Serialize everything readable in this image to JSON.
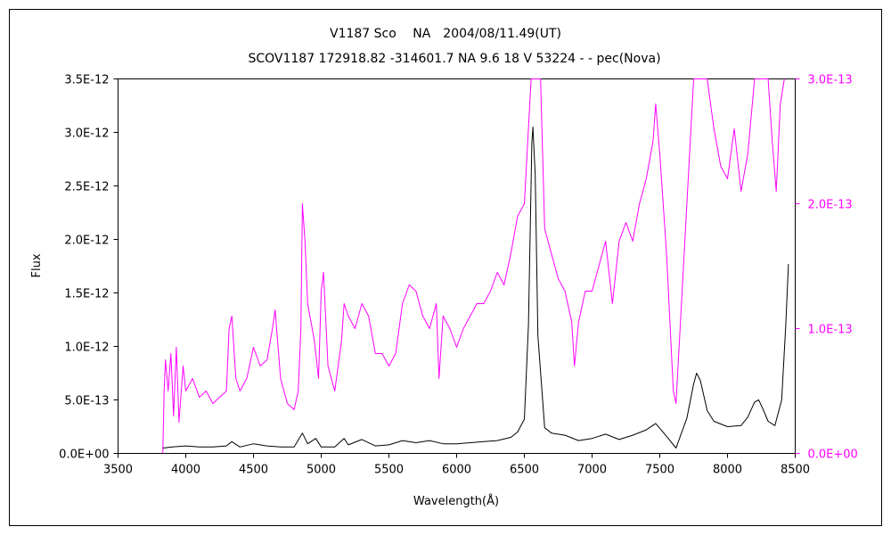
{
  "chart_data": {
    "type": "line",
    "title": "V1187 Sco　 NA　2004/08/11.49(UT)",
    "subtitle": "SCOV1187 172918.82 -314601.7 NA 9.6 18 V 53224 - - pec(Nova)",
    "xlabel": "Wavelength(Å)",
    "ylabel": "Flux",
    "xlim": [
      3500,
      8500
    ],
    "ylim": [
      0,
      3.5e-12
    ],
    "y2lim": [
      0,
      3e-13
    ],
    "x_ticks": [
      "3500",
      "4000",
      "4500",
      "5000",
      "5500",
      "6000",
      "6500",
      "7000",
      "7500",
      "8000",
      "8500"
    ],
    "y_ticks": [
      "0.0E+00",
      "5.0E-13",
      "1.0E-12",
      "1.5E-12",
      "2.0E-12",
      "2.5E-12",
      "3.0E-12",
      "3.5E-12"
    ],
    "y2_ticks": [
      "0.0E+00",
      "1.0E-13",
      "2.0E-13",
      "3.0E-13"
    ],
    "grid": false,
    "colors": {
      "primary": "#000000",
      "secondary": "#ff00ff"
    },
    "series": [
      {
        "axis": "left",
        "x": [
          3830,
          3900,
          4000,
          4100,
          4200,
          4300,
          4340,
          4400,
          4500,
          4600,
          4700,
          4800,
          4861,
          4900,
          4960,
          5000,
          5100,
          5169,
          5200,
          5300,
          5400,
          5500,
          5600,
          5700,
          5800,
          5900,
          6000,
          6100,
          6200,
          6300,
          6400,
          6450,
          6500,
          6530,
          6555,
          6563,
          6580,
          6600,
          6650,
          6700,
          6800,
          6900,
          7000,
          7100,
          7200,
          7300,
          7400,
          7470,
          7550,
          7620,
          7700,
          7750,
          7772,
          7800,
          7850,
          7900,
          8000,
          8100,
          8150,
          8200,
          8230,
          8260,
          8300,
          8350,
          8400,
          8430,
          8450
        ],
        "values": [
          5e-14,
          6e-14,
          7e-14,
          6e-14,
          6e-14,
          7e-14,
          1.1e-13,
          6e-14,
          9e-14,
          7e-14,
          6e-14,
          6e-14,
          1.9e-13,
          9e-14,
          1.4e-13,
          6e-14,
          6e-14,
          1.4e-13,
          8e-14,
          1.3e-13,
          7e-14,
          8e-14,
          1.2e-13,
          1e-13,
          1.2e-13,
          9e-14,
          9e-14,
          1e-13,
          1.1e-13,
          1.2e-13,
          1.5e-13,
          2e-13,
          3.2e-13,
          1.2e-12,
          2.9e-12,
          3.05e-12,
          2.6e-12,
          1.1e-12,
          2.4e-13,
          1.9e-13,
          1.7e-13,
          1.2e-13,
          1.4e-13,
          1.8e-13,
          1.3e-13,
          1.7e-13,
          2.2e-13,
          2.8e-13,
          1.6e-13,
          5e-14,
          3.3e-13,
          6.5e-13,
          7.5e-13,
          6.8e-13,
          4e-13,
          3e-13,
          2.5e-13,
          2.6e-13,
          3.4e-13,
          4.8e-13,
          5e-13,
          4.2e-13,
          3e-13,
          2.6e-13,
          5e-13,
          1.2e-12,
          1.77e-12
        ]
      },
      {
        "axis": "right",
        "x": [
          3830,
          3840,
          3850,
          3870,
          3890,
          3910,
          3930,
          3950,
          3980,
          4000,
          4050,
          4100,
          4150,
          4200,
          4250,
          4300,
          4320,
          4340,
          4370,
          4400,
          4450,
          4500,
          4550,
          4600,
          4640,
          4660,
          4700,
          4750,
          4800,
          4830,
          4850,
          4861,
          4880,
          4900,
          4950,
          4980,
          5000,
          5017,
          5050,
          5100,
          5150,
          5169,
          5200,
          5250,
          5300,
          5350,
          5400,
          5450,
          5500,
          5550,
          5600,
          5650,
          5700,
          5750,
          5800,
          5850,
          5870,
          5900,
          5950,
          6000,
          6050,
          6100,
          6150,
          6200,
          6250,
          6300,
          6350,
          6400,
          6450,
          6500,
          6550,
          6563,
          6620,
          6650,
          6700,
          6750,
          6800,
          6850,
          6870,
          6900,
          6950,
          7000,
          7050,
          7100,
          7150,
          7200,
          7250,
          7300,
          7350,
          7400,
          7450,
          7470,
          7500,
          7550,
          7600,
          7620,
          7650,
          7700,
          7750,
          7800,
          7850,
          7900,
          7950,
          8000,
          8050,
          8100,
          8150,
          8200,
          8250,
          8300,
          8330,
          8360,
          8390,
          8420
        ],
        "values": [
          0,
          5e-14,
          7.5e-14,
          5e-14,
          8e-14,
          3e-14,
          8.5e-14,
          2.5e-14,
          7e-14,
          5e-14,
          6e-14,
          4.5e-14,
          5e-14,
          4e-14,
          4.5e-14,
          5e-14,
          1e-13,
          1.1e-13,
          6e-14,
          5e-14,
          6e-14,
          8.5e-14,
          7e-14,
          7.5e-14,
          1e-13,
          1.15e-13,
          6e-14,
          4e-14,
          3.5e-14,
          5e-14,
          1e-13,
          2e-13,
          1.7e-13,
          1.2e-13,
          9e-14,
          6e-14,
          1.3e-13,
          1.45e-13,
          7e-14,
          5e-14,
          9e-14,
          1.2e-13,
          1.1e-13,
          1e-13,
          1.2e-13,
          1.1e-13,
          8e-14,
          8e-14,
          7e-14,
          8e-14,
          1.2e-13,
          1.35e-13,
          1.3e-13,
          1.1e-13,
          1e-13,
          1.2e-13,
          6e-14,
          1.1e-13,
          1e-13,
          8.5e-14,
          1e-13,
          1.1e-13,
          1.2e-13,
          1.2e-13,
          1.3e-13,
          1.45e-13,
          1.35e-13,
          1.6e-13,
          1.9e-13,
          2e-13,
          3e-13,
          3e-13,
          3e-13,
          1.8e-13,
          1.6e-13,
          1.4e-13,
          1.3e-13,
          1.05e-13,
          7e-14,
          1.05e-13,
          1.3e-13,
          1.3e-13,
          1.5e-13,
          1.7e-13,
          1.2e-13,
          1.7e-13,
          1.85e-13,
          1.7e-13,
          2e-13,
          2.2e-13,
          2.5e-13,
          2.8e-13,
          2.4e-13,
          1.6e-13,
          5e-14,
          4e-14,
          1e-13,
          2e-13,
          3e-13,
          3e-13,
          3e-13,
          2.6e-13,
          2.3e-13,
          2.2e-13,
          2.6e-13,
          2.1e-13,
          2.4e-13,
          3e-13,
          3e-13,
          3e-13,
          2.5e-13,
          2.1e-13,
          2.8e-13,
          3e-13
        ]
      }
    ]
  }
}
